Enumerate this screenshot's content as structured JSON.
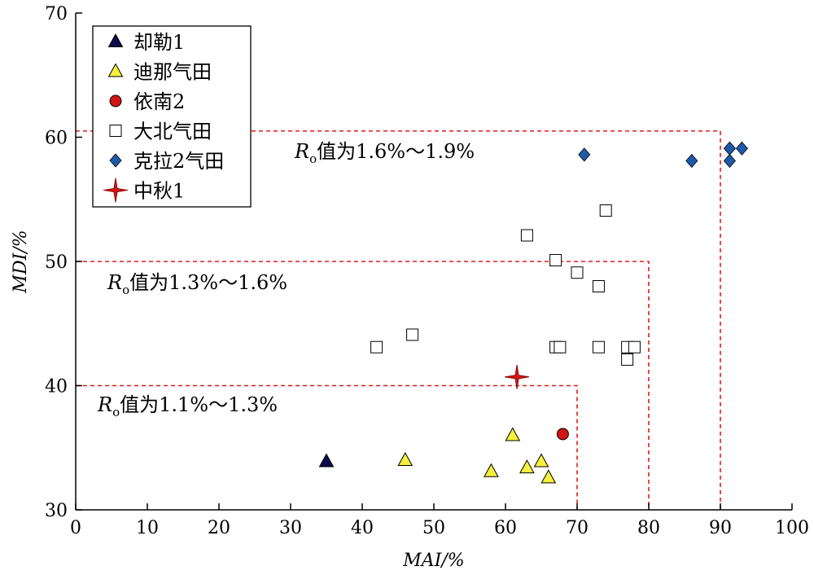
{
  "chart_data": {
    "type": "scatter",
    "xlabel": "MAI/%",
    "ylabel": "MDI/%",
    "xlim": [
      0,
      100
    ],
    "ylim": [
      30,
      70
    ],
    "xticks": [
      0,
      10,
      20,
      30,
      40,
      50,
      60,
      70,
      80,
      90,
      100
    ],
    "yticks": [
      30,
      40,
      50,
      60,
      70
    ],
    "grid": false,
    "legend_position": "top-left",
    "series": [
      {
        "name": "却勒1",
        "marker": "triangle",
        "color": "#0b0b4d",
        "points": [
          [
            35,
            33.9
          ]
        ]
      },
      {
        "name": "迪那气田",
        "marker": "triangle",
        "color": "#f5f03c",
        "points": [
          [
            46,
            34
          ],
          [
            58,
            33.1
          ],
          [
            61,
            36
          ],
          [
            63,
            33.4
          ],
          [
            65,
            33.9
          ],
          [
            66,
            32.6
          ]
        ]
      },
      {
        "name": "依南2",
        "marker": "circle",
        "color": "#d11515",
        "points": [
          [
            68,
            36.1
          ]
        ]
      },
      {
        "name": "大北气田",
        "marker": "square",
        "color": "#ffffff",
        "points": [
          [
            42,
            43.1
          ],
          [
            47,
            44.1
          ],
          [
            63,
            52.1
          ],
          [
            67,
            50.1
          ],
          [
            67,
            43.1
          ],
          [
            67.6,
            43.1
          ],
          [
            70,
            49.1
          ],
          [
            73,
            48
          ],
          [
            73,
            43.1
          ],
          [
            74,
            54.1
          ],
          [
            77,
            43.1
          ],
          [
            77,
            42.1
          ],
          [
            78,
            43.1
          ]
        ]
      },
      {
        "name": "克拉2气田",
        "marker": "diamond",
        "color": "#1f5aa8",
        "points": [
          [
            71,
            58.6
          ],
          [
            86,
            58.1
          ],
          [
            91.3,
            59.1
          ],
          [
            91.3,
            58.1
          ],
          [
            93,
            59.1
          ]
        ]
      },
      {
        "name": "中秋1",
        "marker": "star",
        "color": "#d11515",
        "points": [
          [
            61.6,
            40.7
          ]
        ]
      }
    ],
    "zones": [
      {
        "label_main": "R",
        "label_sub": "o",
        "label_rest": "值为1.1%～1.3%",
        "x_max": 70,
        "y_max": 40
      },
      {
        "label_main": "R",
        "label_sub": "o",
        "label_rest": "值为1.3%～1.6%",
        "x_max": 80,
        "y_max": 50
      },
      {
        "label_main": "R",
        "label_sub": "o",
        "label_rest": "值为1.6%～1.9%",
        "x_max": 90,
        "y_max": 60.5
      }
    ]
  }
}
